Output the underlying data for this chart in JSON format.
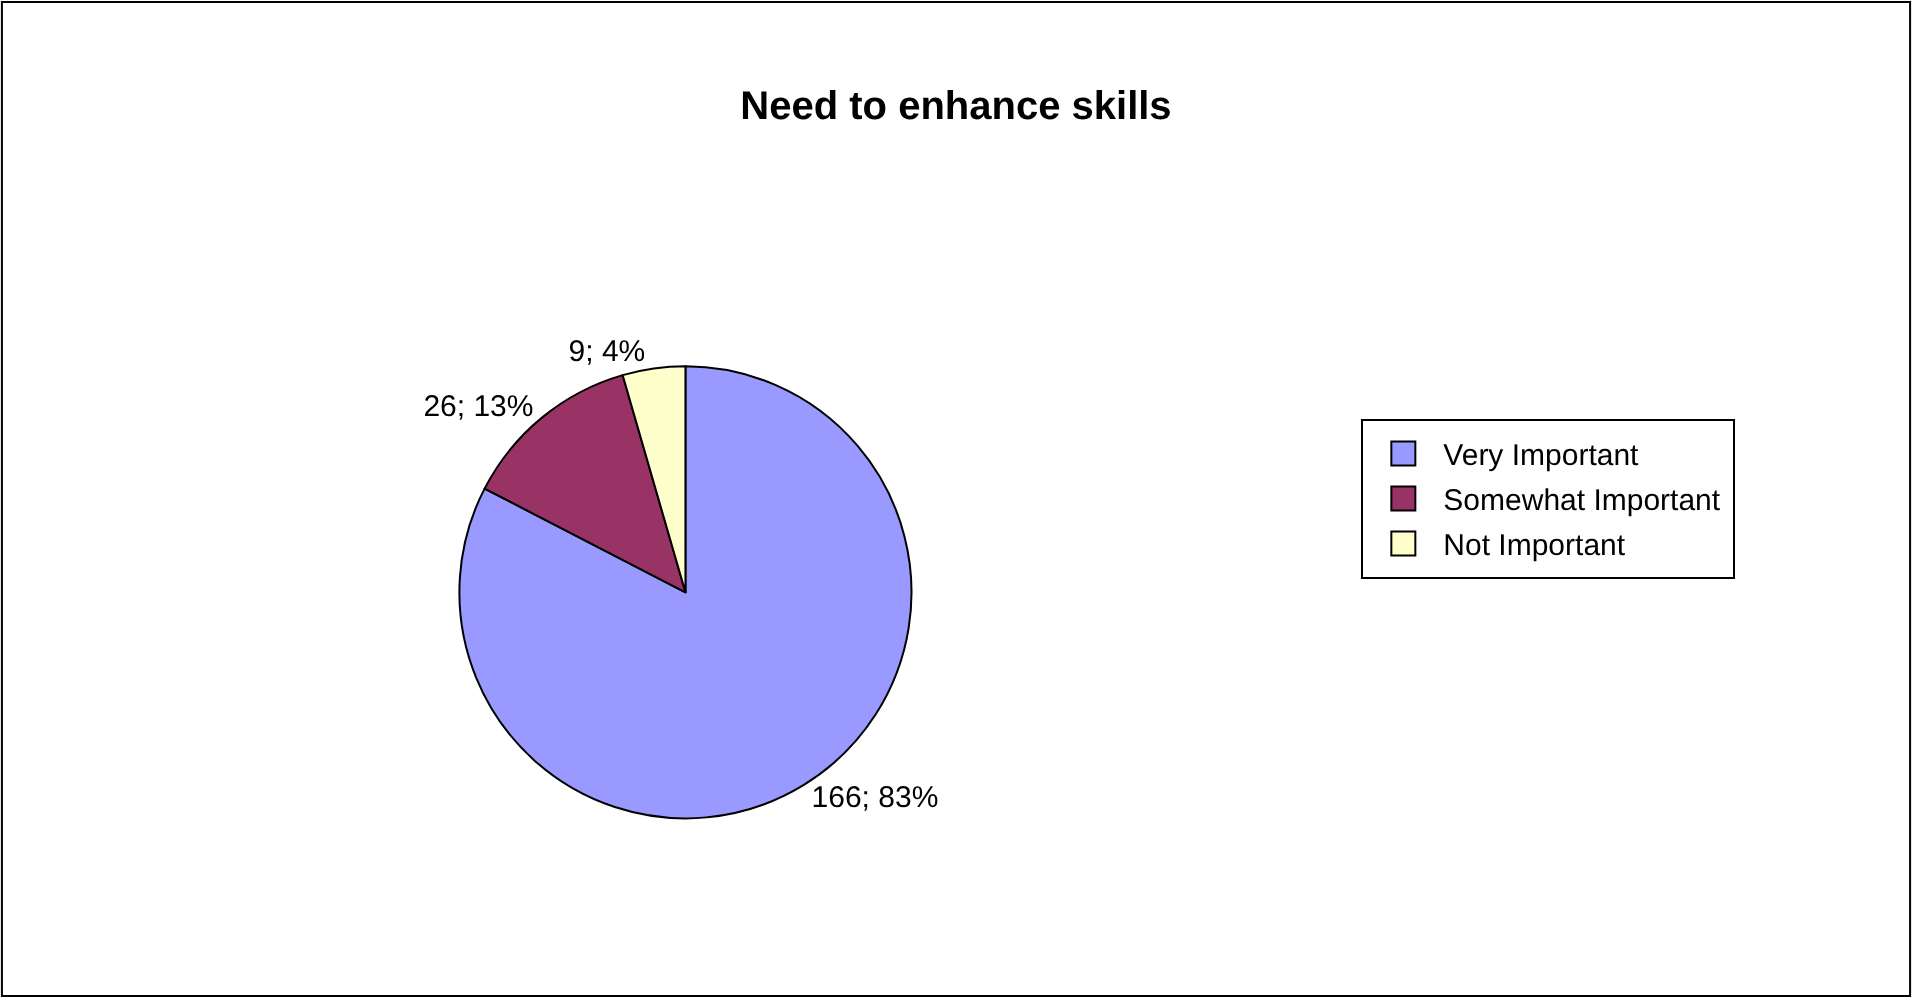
{
  "chart_data": {
    "type": "pie",
    "title": "Need to enhance skills",
    "categories": [
      "Very Important",
      "Somewhat Important",
      "Not Important"
    ],
    "values": [
      166,
      26,
      9
    ],
    "value_labels": [
      "166; 83%",
      "26; 13%",
      "9; 4%"
    ],
    "colors": [
      "#9999ff",
      "#993366",
      "#ffffcc"
    ],
    "legend": "right"
  }
}
